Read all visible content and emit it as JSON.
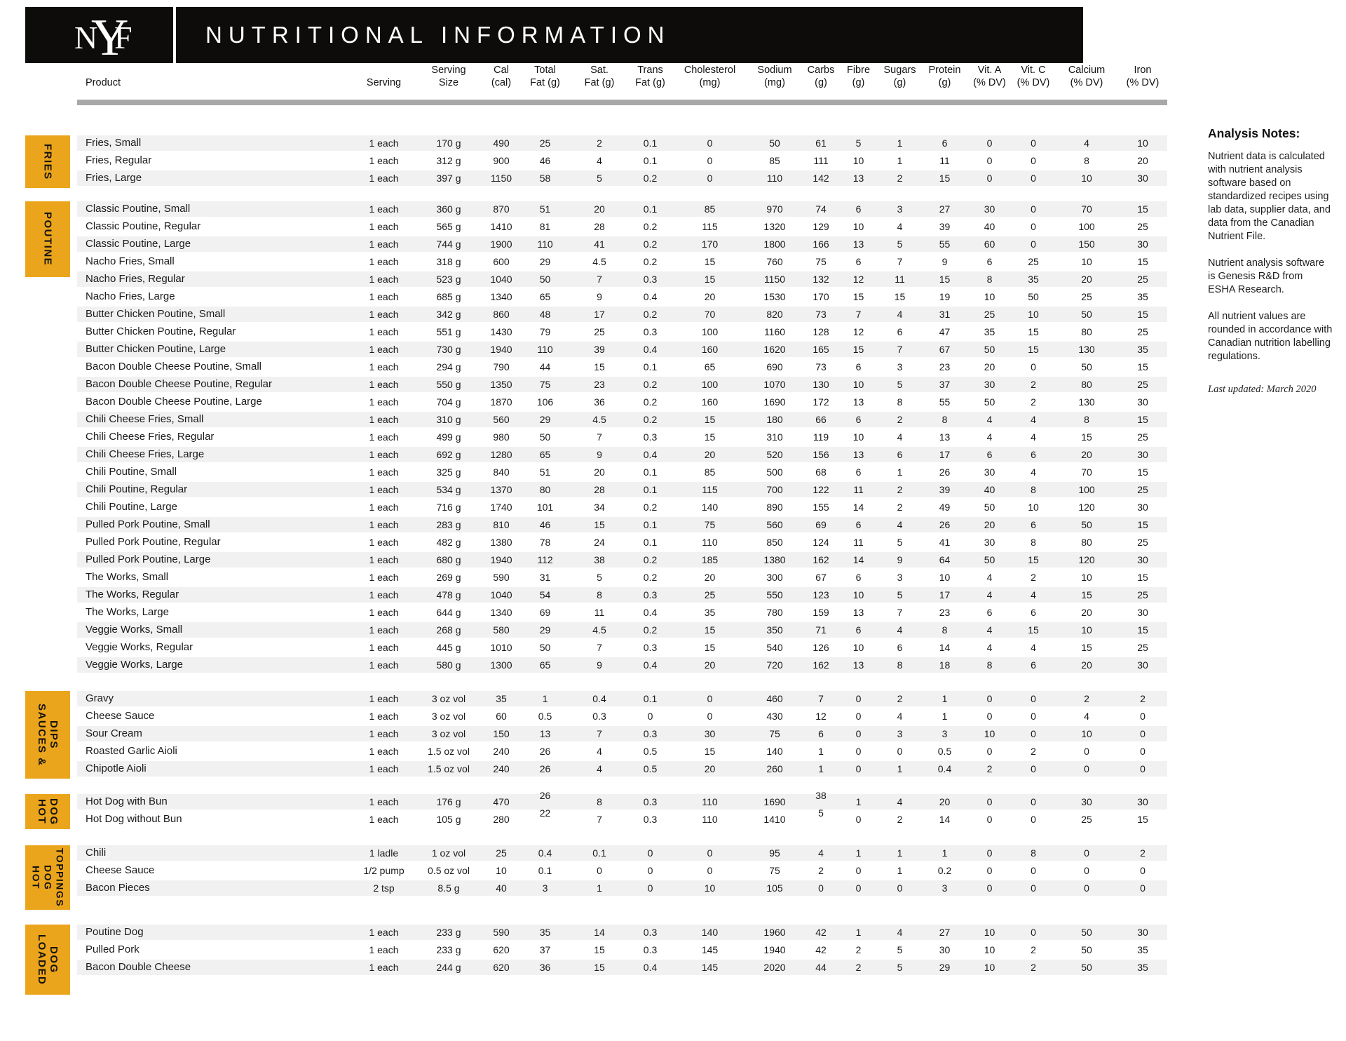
{
  "header": {
    "logo": {
      "n": "N",
      "y": "Y",
      "f": "F"
    },
    "title": "NUTRITIONAL INFORMATION"
  },
  "columns": [
    {
      "l1": "",
      "l2": "Product"
    },
    {
      "l1": "",
      "l2": "Serving"
    },
    {
      "l1": "Serving",
      "l2": "Size"
    },
    {
      "l1": "Cal",
      "l2": "(cal)"
    },
    {
      "l1": "Total",
      "l2": "Fat (g)"
    },
    {
      "l1": "Sat.",
      "l2": "Fat (g)"
    },
    {
      "l1": "Trans",
      "l2": "Fat (g)"
    },
    {
      "l1": "Cholesterol",
      "l2": "(mg)"
    },
    {
      "l1": "Sodium",
      "l2": "(mg)"
    },
    {
      "l1": "Carbs",
      "l2": "(g)"
    },
    {
      "l1": "Fibre",
      "l2": "(g)"
    },
    {
      "l1": "Sugars",
      "l2": "(g)"
    },
    {
      "l1": "Protein",
      "l2": "(g)"
    },
    {
      "l1": "Vit. A",
      "l2": "(% DV)"
    },
    {
      "l1": "Vit. C",
      "l2": "(% DV)"
    },
    {
      "l1": "Calcium",
      "l2": "(% DV)"
    },
    {
      "l1": "Iron",
      "l2": "(% DV)"
    }
  ],
  "accent_color": "#eba51c",
  "sections": [
    {
      "id": "fries",
      "tab_lines": [
        "FRIES"
      ],
      "rows": [
        {
          "product": "Fries, Small",
          "values": [
            "1 each",
            "170 g",
            "490",
            "25",
            "2",
            "0.1",
            "0",
            "50",
            "61",
            "5",
            "1",
            "6",
            "0",
            "0",
            "4",
            "10"
          ]
        },
        {
          "product": "Fries, Regular",
          "values": [
            "1 each",
            "312 g",
            "900",
            "46",
            "4",
            "0.1",
            "0",
            "85",
            "111",
            "10",
            "1",
            "11",
            "0",
            "0",
            "8",
            "20"
          ]
        },
        {
          "product": "Fries, Large",
          "values": [
            "1 each",
            "397 g",
            "1150",
            "58",
            "5",
            "0.2",
            "0",
            "110",
            "142",
            "13",
            "2",
            "15",
            "0",
            "0",
            "10",
            "30"
          ]
        }
      ]
    },
    {
      "id": "poutine",
      "tab_lines": [
        "POUTINE"
      ],
      "rows": [
        {
          "product": "Classic Poutine, Small",
          "values": [
            "1 each",
            "360 g",
            "870",
            "51",
            "20",
            "0.1",
            "85",
            "970",
            "74",
            "6",
            "3",
            "27",
            "30",
            "0",
            "70",
            "15"
          ]
        },
        {
          "product": "Classic Poutine, Regular",
          "values": [
            "1 each",
            "565 g",
            "1410",
            "81",
            "28",
            "0.2",
            "115",
            "1320",
            "129",
            "10",
            "4",
            "39",
            "40",
            "0",
            "100",
            "25"
          ]
        },
        {
          "product": "Classic Poutine, Large",
          "values": [
            "1 each",
            "744 g",
            "1900",
            "110",
            "41",
            "0.2",
            "170",
            "1800",
            "166",
            "13",
            "5",
            "55",
            "60",
            "0",
            "150",
            "30"
          ]
        },
        {
          "product": "Nacho Fries, Small",
          "values": [
            "1 each",
            "318 g",
            "600",
            "29",
            "4.5",
            "0.2",
            "15",
            "760",
            "75",
            "6",
            "7",
            "9",
            "6",
            "25",
            "10",
            "15"
          ]
        },
        {
          "product": "Nacho Fries, Regular",
          "values": [
            "1 each",
            "523 g",
            "1040",
            "50",
            "7",
            "0.3",
            "15",
            "1150",
            "132",
            "12",
            "11",
            "15",
            "8",
            "35",
            "20",
            "25"
          ]
        },
        {
          "product": "Nacho Fries, Large",
          "values": [
            "1 each",
            "685 g",
            "1340",
            "65",
            "9",
            "0.4",
            "20",
            "1530",
            "170",
            "15",
            "15",
            "19",
            "10",
            "50",
            "25",
            "35"
          ]
        },
        {
          "product": "Butter Chicken Poutine, Small",
          "values": [
            "1 each",
            "342 g",
            "860",
            "48",
            "17",
            "0.2",
            "70",
            "820",
            "73",
            "7",
            "4",
            "31",
            "25",
            "10",
            "50",
            "15"
          ]
        },
        {
          "product": "Butter Chicken Poutine, Regular",
          "values": [
            "1 each",
            "551 g",
            "1430",
            "79",
            "25",
            "0.3",
            "100",
            "1160",
            "128",
            "12",
            "6",
            "47",
            "35",
            "15",
            "80",
            "25"
          ]
        },
        {
          "product": "Butter Chicken Poutine, Large",
          "values": [
            "1 each",
            "730 g",
            "1940",
            "110",
            "39",
            "0.4",
            "160",
            "1620",
            "165",
            "15",
            "7",
            "67",
            "50",
            "15",
            "130",
            "35"
          ]
        },
        {
          "product": "Bacon Double Cheese Poutine, Small",
          "values": [
            "1 each",
            "294 g",
            "790",
            "44",
            "15",
            "0.1",
            "65",
            "690",
            "73",
            "6",
            "3",
            "23",
            "20",
            "0",
            "50",
            "15"
          ]
        },
        {
          "product": "Bacon Double Cheese Poutine, Regular",
          "values": [
            "1 each",
            "550 g",
            "1350",
            "75",
            "23",
            "0.2",
            "100",
            "1070",
            "130",
            "10",
            "5",
            "37",
            "30",
            "2",
            "80",
            "25"
          ]
        },
        {
          "product": "Bacon Double Cheese Poutine, Large",
          "values": [
            "1 each",
            "704 g",
            "1870",
            "106",
            "36",
            "0.2",
            "160",
            "1690",
            "172",
            "13",
            "8",
            "55",
            "50",
            "2",
            "130",
            "30"
          ]
        },
        {
          "product": "Chili Cheese Fries, Small",
          "values": [
            "1 each",
            "310 g",
            "560",
            "29",
            "4.5",
            "0.2",
            "15",
            "180",
            "66",
            "6",
            "2",
            "8",
            "4",
            "4",
            "8",
            "15"
          ]
        },
        {
          "product": "Chili Cheese Fries, Regular",
          "values": [
            "1 each",
            "499 g",
            "980",
            "50",
            "7",
            "0.3",
            "15",
            "310",
            "119",
            "10",
            "4",
            "13",
            "4",
            "4",
            "15",
            "25"
          ]
        },
        {
          "product": "Chili Cheese Fries, Large",
          "values": [
            "1 each",
            "692 g",
            "1280",
            "65",
            "9",
            "0.4",
            "20",
            "520",
            "156",
            "13",
            "6",
            "17",
            "6",
            "6",
            "20",
            "30"
          ]
        },
        {
          "product": "Chili Poutine, Small",
          "values": [
            "1 each",
            "325 g",
            "840",
            "51",
            "20",
            "0.1",
            "85",
            "500",
            "68",
            "6",
            "1",
            "26",
            "30",
            "4",
            "70",
            "15"
          ]
        },
        {
          "product": "Chili Poutine, Regular",
          "values": [
            "1 each",
            "534 g",
            "1370",
            "80",
            "28",
            "0.1",
            "115",
            "700",
            "122",
            "11",
            "2",
            "39",
            "40",
            "8",
            "100",
            "25"
          ]
        },
        {
          "product": "Chili Poutine, Large",
          "values": [
            "1 each",
            "716 g",
            "1740",
            "101",
            "34",
            "0.2",
            "140",
            "890",
            "155",
            "14",
            "2",
            "49",
            "50",
            "10",
            "120",
            "30"
          ]
        },
        {
          "product": "Pulled Pork Poutine, Small",
          "values": [
            "1 each",
            "283 g",
            "810",
            "46",
            "15",
            "0.1",
            "75",
            "560",
            "69",
            "6",
            "4",
            "26",
            "20",
            "6",
            "50",
            "15"
          ]
        },
        {
          "product": "Pulled Pork Poutine, Regular",
          "values": [
            "1 each",
            "482 g",
            "1380",
            "78",
            "24",
            "0.1",
            "110",
            "850",
            "124",
            "11",
            "5",
            "41",
            "30",
            "8",
            "80",
            "25"
          ]
        },
        {
          "product": "Pulled Pork Poutine, Large",
          "values": [
            "1 each",
            "680 g",
            "1940",
            "112",
            "38",
            "0.2",
            "185",
            "1380",
            "162",
            "14",
            "9",
            "64",
            "50",
            "15",
            "120",
            "30"
          ]
        },
        {
          "product": "The Works, Small",
          "values": [
            "1 each",
            "269 g",
            "590",
            "31",
            "5",
            "0.2",
            "20",
            "300",
            "67",
            "6",
            "3",
            "10",
            "4",
            "2",
            "10",
            "15"
          ]
        },
        {
          "product": "The Works, Regular",
          "values": [
            "1 each",
            "478 g",
            "1040",
            "54",
            "8",
            "0.3",
            "25",
            "550",
            "123",
            "10",
            "5",
            "17",
            "4",
            "4",
            "15",
            "25"
          ]
        },
        {
          "product": "The Works, Large",
          "values": [
            "1 each",
            "644 g",
            "1340",
            "69",
            "11",
            "0.4",
            "35",
            "780",
            "159",
            "13",
            "7",
            "23",
            "6",
            "6",
            "20",
            "30"
          ]
        },
        {
          "product": "Veggie Works, Small",
          "values": [
            "1 each",
            "268 g",
            "580",
            "29",
            "4.5",
            "0.2",
            "15",
            "350",
            "71",
            "6",
            "4",
            "8",
            "4",
            "15",
            "10",
            "15"
          ]
        },
        {
          "product": "Veggie Works, Regular",
          "values": [
            "1 each",
            "445 g",
            "1010",
            "50",
            "7",
            "0.3",
            "15",
            "540",
            "126",
            "10",
            "6",
            "14",
            "4",
            "4",
            "15",
            "25"
          ]
        },
        {
          "product": "Veggie Works, Large",
          "values": [
            "1 each",
            "580 g",
            "1300",
            "65",
            "9",
            "0.4",
            "20",
            "720",
            "162",
            "13",
            "8",
            "18",
            "8",
            "6",
            "20",
            "30"
          ]
        }
      ]
    },
    {
      "id": "sauces-dips",
      "tab_lines": [
        "SAUCES &",
        "DIPS"
      ],
      "rows": [
        {
          "product": "Gravy",
          "values": [
            "1 each",
            "3 oz vol",
            "35",
            "1",
            "0.4",
            "0.1",
            "0",
            "460",
            "7",
            "0",
            "2",
            "1",
            "0",
            "0",
            "2",
            "2"
          ]
        },
        {
          "product": "Cheese Sauce",
          "values": [
            "1 each",
            "3 oz vol",
            "60",
            "0.5",
            "0.3",
            "0",
            "0",
            "430",
            "12",
            "0",
            "4",
            "1",
            "0",
            "0",
            "4",
            "0"
          ]
        },
        {
          "product": "Sour Cream",
          "values": [
            "1 each",
            "3 oz vol",
            "150",
            "13",
            "7",
            "0.3",
            "30",
            "75",
            "6",
            "0",
            "3",
            "3",
            "10",
            "0",
            "10",
            "0"
          ]
        },
        {
          "product": "Roasted Garlic Aioli",
          "values": [
            "1 each",
            "1.5 oz vol",
            "240",
            "26",
            "4",
            "0.5",
            "15",
            "140",
            "1",
            "0",
            "0",
            "0.5",
            "0",
            "2",
            "0",
            "0"
          ]
        },
        {
          "product": "Chipotle Aioli",
          "values": [
            "1 each",
            "1.5 oz vol",
            "240",
            "26",
            "4",
            "0.5",
            "20",
            "260",
            "1",
            "0",
            "1",
            "0.4",
            "2",
            "0",
            "0",
            "0"
          ]
        }
      ]
    },
    {
      "id": "hot-dog",
      "tab_lines": [
        "HOT",
        "DOG"
      ],
      "rows": [
        {
          "product": "Hot Dog with Bun",
          "values": [
            "1 each",
            "176 g",
            "470",
            "26",
            "8",
            "0.3",
            "110",
            "1690",
            "38",
            "1",
            "4",
            "20",
            "0",
            "0",
            "30",
            "30"
          ]
        },
        {
          "product": "Hot Dog without Bun",
          "values": [
            "1 each",
            "105 g",
            "280",
            "22",
            "7",
            "0.3",
            "110",
            "1410",
            "5",
            "0",
            "2",
            "14",
            "0",
            "0",
            "25",
            "15"
          ]
        }
      ]
    },
    {
      "id": "hot-dog-toppings",
      "tab_lines": [
        "HOT",
        "DOG",
        "TOPPINGS"
      ],
      "rows": [
        {
          "product": "Chili",
          "values": [
            "1 ladle",
            "1 oz vol",
            "25",
            "0.4",
            "0.1",
            "0",
            "0",
            "95",
            "4",
            "1",
            "1",
            "1",
            "0",
            "8",
            "0",
            "2"
          ]
        },
        {
          "product": "Cheese Sauce",
          "values": [
            "1/2 pump",
            "0.5 oz vol",
            "10",
            "0.1",
            "0",
            "0",
            "0",
            "75",
            "2",
            "0",
            "1",
            "0.2",
            "0",
            "0",
            "0",
            "0"
          ]
        },
        {
          "product": "Bacon Pieces",
          "values": [
            "2 tsp",
            "8.5 g",
            "40",
            "3",
            "1",
            "0",
            "10",
            "105",
            "0",
            "0",
            "0",
            "3",
            "0",
            "0",
            "0",
            "0"
          ]
        }
      ]
    },
    {
      "id": "loaded-dog",
      "tab_lines": [
        "LOADED",
        "DOG"
      ],
      "rows": [
        {
          "product": "Poutine Dog",
          "values": [
            "1 each",
            "233 g",
            "590",
            "35",
            "14",
            "0.3",
            "140",
            "1960",
            "42",
            "1",
            "4",
            "27",
            "10",
            "0",
            "50",
            "30"
          ]
        },
        {
          "product": "Pulled Pork",
          "values": [
            "1 each",
            "233 g",
            "620",
            "37",
            "15",
            "0.3",
            "145",
            "1940",
            "42",
            "2",
            "5",
            "30",
            "10",
            "2",
            "50",
            "35"
          ]
        },
        {
          "product": "Bacon Double Cheese",
          "values": [
            "1 each",
            "244 g",
            "620",
            "36",
            "15",
            "0.4",
            "145",
            "2020",
            "44",
            "2",
            "5",
            "29",
            "10",
            "2",
            "50",
            "35"
          ]
        }
      ]
    }
  ],
  "notes": {
    "title": "Analysis Notes:",
    "paragraphs": [
      "Nutrient data is calculated with nutrient analysis software based on standardized recipes using lab data, supplier data, and data from the Canadian Nutrient File.",
      "Nutrient analysis software is Genesis R&D from ESHA Research.",
      "All nutrient values are rounded in accordance with Canadian nutrition labelling regulations."
    ],
    "updated": "Last updated: March 2020"
  }
}
